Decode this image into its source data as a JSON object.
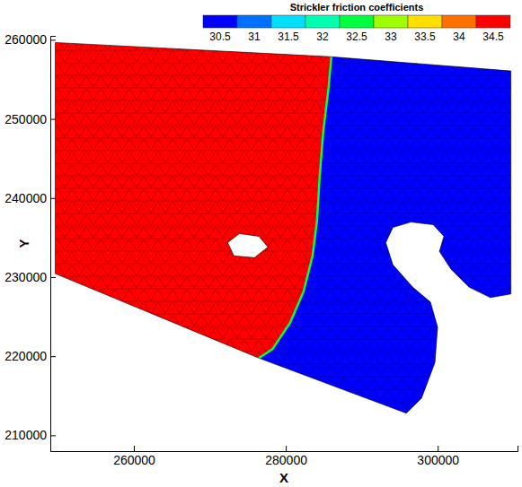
{
  "chart_data": {
    "type": "mesh_map",
    "x_label": "X",
    "y_label": "Y",
    "xlim": [
      249000,
      310500
    ],
    "ylim": [
      208000,
      260500
    ],
    "xticks": [
      260000,
      280000,
      300000
    ],
    "yticks": [
      210000,
      220000,
      230000,
      240000,
      250000,
      260000
    ],
    "colorbar": {
      "title": "Strickler friction coefficients",
      "levels": [
        30.5,
        31,
        31.5,
        32,
        32.5,
        33,
        33.5,
        34,
        34.5
      ],
      "colors": [
        "#0000ff",
        "#0070ff",
        "#00dfff",
        "#00ffaf",
        "#00ff40",
        "#9fff00",
        "#ffdf00",
        "#ff7000",
        "#ff0000"
      ]
    },
    "regions": [
      {
        "value": 35,
        "outline": [
          [
            249650,
            259660
          ],
          [
            285990,
            257860
          ],
          [
            285640,
            254040
          ],
          [
            284930,
            248420
          ],
          [
            284460,
            242800
          ],
          [
            284110,
            237180
          ],
          [
            283520,
            232690
          ],
          [
            282340,
            228190
          ],
          [
            280580,
            224260
          ],
          [
            278230,
            220890
          ],
          [
            276460,
            219760
          ],
          [
            249650,
            230440
          ]
        ],
        "holes": [
          [
            [
              272350,
              234370
            ],
            [
              273880,
              235500
            ],
            [
              276460,
              235160
            ],
            [
              277640,
              233810
            ],
            [
              275880,
              232460
            ],
            [
              273170,
              232690
            ]
          ]
        ]
      },
      {
        "value": 30,
        "outline": [
          [
            285990,
            257860
          ],
          [
            309630,
            256070
          ],
          [
            309630,
            227860
          ],
          [
            306920,
            227410
          ],
          [
            304100,
            228750
          ],
          [
            301750,
            231000
          ],
          [
            300220,
            233250
          ],
          [
            300810,
            235160
          ],
          [
            299400,
            236620
          ],
          [
            296460,
            236960
          ],
          [
            294100,
            236280
          ],
          [
            293160,
            234370
          ],
          [
            294100,
            231560
          ],
          [
            296690,
            228750
          ],
          [
            299040,
            226840
          ],
          [
            299980,
            223690
          ],
          [
            299630,
            219200
          ],
          [
            297870,
            214700
          ],
          [
            295870,
            212790
          ],
          [
            276460,
            219760
          ],
          [
            278230,
            220890
          ],
          [
            280580,
            224260
          ],
          [
            282340,
            228190
          ],
          [
            283520,
            232690
          ],
          [
            284110,
            237180
          ],
          [
            284460,
            242800
          ],
          [
            284930,
            248420
          ],
          [
            285640,
            254040
          ]
        ],
        "holes": []
      }
    ],
    "transition": {
      "value": 32.5,
      "line": [
        [
          285990,
          257860
        ],
        [
          285640,
          254040
        ],
        [
          284930,
          248420
        ],
        [
          284460,
          242800
        ],
        [
          284110,
          237180
        ],
        [
          283520,
          232690
        ],
        [
          282340,
          228190
        ],
        [
          280580,
          224260
        ],
        [
          278230,
          220890
        ],
        [
          276460,
          219760
        ]
      ]
    }
  }
}
